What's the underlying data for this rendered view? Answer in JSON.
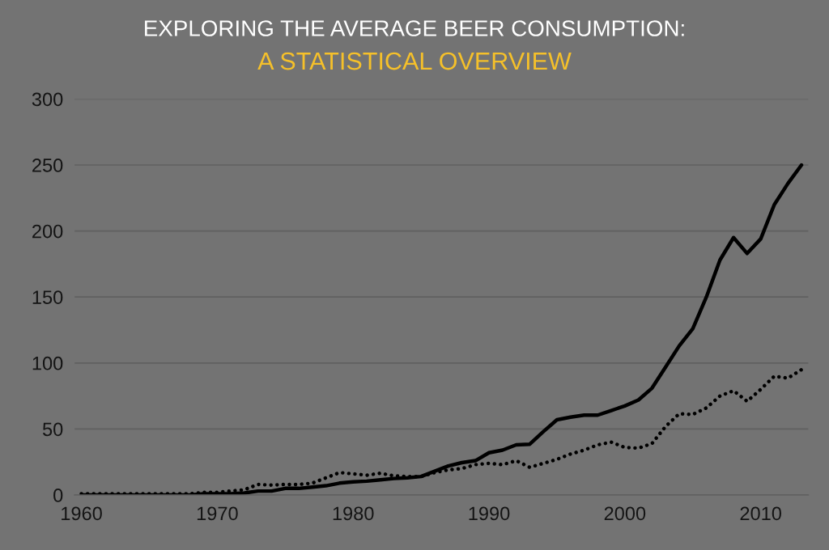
{
  "chart_data": {
    "type": "line",
    "title": "EXPLORING THE AVERAGE BEER CONSUMPTION:",
    "subtitle": "A STATISTICAL OVERVIEW",
    "x": [
      1960,
      1961,
      1962,
      1963,
      1964,
      1965,
      1966,
      1967,
      1968,
      1969,
      1970,
      1971,
      1972,
      1973,
      1974,
      1975,
      1976,
      1977,
      1978,
      1979,
      1980,
      1981,
      1982,
      1983,
      1984,
      1985,
      1986,
      1987,
      1988,
      1989,
      1990,
      1991,
      1992,
      1993,
      1994,
      1995,
      1996,
      1997,
      1998,
      1999,
      2000,
      2001,
      2002,
      2003,
      2004,
      2005,
      2006,
      2007,
      2008,
      2009,
      2010,
      2011,
      2012,
      2013
    ],
    "series": [
      {
        "color": "#000000",
        "line_style": "solid",
        "values": [
          0,
          0,
          0,
          0,
          0,
          0,
          0,
          0,
          0,
          1,
          1,
          1,
          1.5,
          3,
          3,
          5,
          5,
          6,
          7,
          9,
          10,
          10.5,
          11.5,
          12.5,
          13,
          14,
          18,
          22,
          24.5,
          26,
          32,
          34,
          38,
          38.5,
          48,
          57,
          59,
          60.5,
          60.5,
          64,
          67.5,
          72,
          81,
          97,
          113,
          126,
          150,
          178,
          195,
          183,
          194,
          220,
          236,
          250
        ]
      },
      {
        "color": "#000000",
        "line_style": "dotted",
        "values": [
          1,
          1,
          1,
          1,
          1,
          1,
          1,
          1,
          1,
          2,
          2,
          3,
          4,
          8,
          7.5,
          8,
          8,
          9,
          13,
          17,
          16,
          15,
          16.5,
          14.5,
          14,
          14,
          17,
          19,
          20,
          23,
          24,
          23,
          26,
          21,
          24,
          27,
          31,
          34,
          38,
          40,
          36,
          35.5,
          39,
          52,
          61.5,
          61,
          66,
          75,
          79,
          71,
          80,
          90,
          88.5,
          95
        ]
      }
    ],
    "xlim": [
      1959.5,
      2013.5
    ],
    "xticks": [
      1960,
      1970,
      1980,
      1990,
      2000,
      2010
    ],
    "ylim": [
      0,
      300
    ],
    "yticks": [
      0,
      50,
      100,
      150,
      200,
      250,
      300
    ],
    "grid": "y"
  }
}
